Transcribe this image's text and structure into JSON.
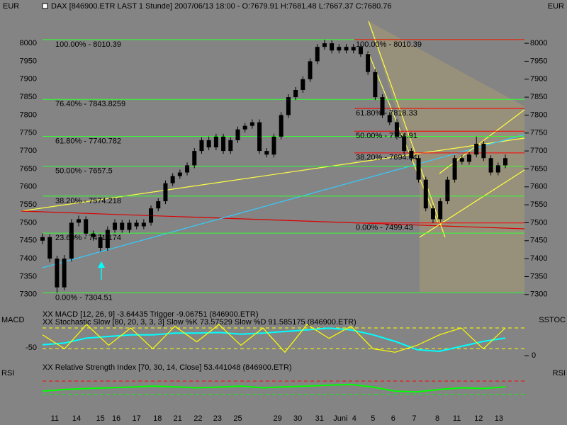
{
  "chart_data": [
    {
      "type": "candlestick",
      "title": "DAX [846900.ETR LAST 1 Stunde] 2007/06/13 18:00 - O:7679.91 H:7681.48 L:7667.37 C:7680.76",
      "ylabel": "EUR",
      "y2label": "EUR",
      "color": "#000000",
      "ylim": [
        7272,
        8091
      ],
      "yticks": [
        7300,
        7350,
        7400,
        7450,
        7500,
        7550,
        7600,
        7650,
        7700,
        7750,
        7800,
        7850,
        7900,
        7950,
        8000
      ],
      "xlim": [
        0,
        64
      ],
      "xticks": [
        {
          "value": 1.7,
          "label": "11"
        },
        {
          "value": 4.7,
          "label": "14"
        },
        {
          "value": 8,
          "label": "15"
        },
        {
          "value": 10.2,
          "label": "16"
        },
        {
          "value": 13,
          "label": "17"
        },
        {
          "value": 15.9,
          "label": "18"
        },
        {
          "value": 18.7,
          "label": "21"
        },
        {
          "value": 21.5,
          "label": "22"
        },
        {
          "value": 24.2,
          "label": "23"
        },
        {
          "value": 27,
          "label": "25"
        },
        {
          "value": 32.5,
          "label": "29"
        },
        {
          "value": 35.3,
          "label": "30"
        },
        {
          "value": 38.3,
          "label": "31"
        },
        {
          "value": 41.2,
          "label": "Juni"
        },
        {
          "value": 43.1,
          "label": "4"
        },
        {
          "value": 45.7,
          "label": "5"
        },
        {
          "value": 48.5,
          "label": "6"
        },
        {
          "value": 51.4,
          "label": "7"
        },
        {
          "value": 54.6,
          "label": "8"
        },
        {
          "value": 57.3,
          "label": "11"
        },
        {
          "value": 60.3,
          "label": "12"
        },
        {
          "value": 63.1,
          "label": "13"
        }
      ],
      "ohlc": [
        [
          7450,
          7470,
          7440,
          7460
        ],
        [
          7460,
          7468,
          7390,
          7400
        ],
        [
          7400,
          7408,
          7305,
          7320
        ],
        [
          7320,
          7410,
          7312,
          7400
        ],
        [
          7400,
          7510,
          7392,
          7500
        ],
        [
          7500,
          7520,
          7490,
          7510
        ],
        [
          7510,
          7518,
          7462,
          7470
        ],
        [
          7470,
          7478,
          7450,
          7460
        ],
        [
          7460,
          7468,
          7420,
          7430
        ],
        [
          7430,
          7490,
          7422,
          7480
        ],
        [
          7480,
          7510,
          7472,
          7500
        ],
        [
          7500,
          7508,
          7472,
          7480
        ],
        [
          7480,
          7508,
          7472,
          7500
        ],
        [
          7500,
          7508,
          7482,
          7490
        ],
        [
          7490,
          7510,
          7482,
          7500
        ],
        [
          7500,
          7548,
          7492,
          7540
        ],
        [
          7540,
          7568,
          7532,
          7560
        ],
        [
          7560,
          7618,
          7552,
          7610
        ],
        [
          7610,
          7638,
          7602,
          7630
        ],
        [
          7630,
          7648,
          7622,
          7640
        ],
        [
          7640,
          7668,
          7632,
          7660
        ],
        [
          7660,
          7708,
          7652,
          7700
        ],
        [
          7700,
          7738,
          7692,
          7730
        ],
        [
          7730,
          7740,
          7702,
          7710
        ],
        [
          7710,
          7748,
          7702,
          7740
        ],
        [
          7740,
          7748,
          7692,
          7700
        ],
        [
          7700,
          7738,
          7692,
          7730
        ],
        [
          7730,
          7768,
          7722,
          7760
        ],
        [
          7760,
          7778,
          7752,
          7770
        ],
        [
          7770,
          7788,
          7762,
          7780
        ],
        [
          7780,
          7788,
          7692,
          7700
        ],
        [
          7700,
          7708,
          7682,
          7690
        ],
        [
          7690,
          7748,
          7682,
          7740
        ],
        [
          7740,
          7808,
          7732,
          7800
        ],
        [
          7800,
          7858,
          7792,
          7850
        ],
        [
          7850,
          7878,
          7842,
          7870
        ],
        [
          7870,
          7908,
          7862,
          7900
        ],
        [
          7900,
          7958,
          7892,
          7950
        ],
        [
          7950,
          7998,
          7942,
          7990
        ],
        [
          7990,
          8010,
          7982,
          8000
        ],
        [
          8000,
          8008,
          7972,
          7980
        ],
        [
          7980,
          7998,
          7972,
          7990
        ],
        [
          7990,
          7998,
          7972,
          7980
        ],
        [
          7980,
          7998,
          7972,
          7990
        ],
        [
          7990,
          7998,
          7962,
          7970
        ],
        [
          7970,
          7978,
          7912,
          7920
        ],
        [
          7920,
          7928,
          7842,
          7850
        ],
        [
          7850,
          7858,
          7792,
          7800
        ],
        [
          7800,
          7808,
          7772,
          7780
        ],
        [
          7780,
          7788,
          7732,
          7740
        ],
        [
          7740,
          7748,
          7692,
          7700
        ],
        [
          7700,
          7708,
          7672,
          7680
        ],
        [
          7680,
          7688,
          7612,
          7620
        ],
        [
          7620,
          7628,
          7532,
          7540
        ],
        [
          7540,
          7548,
          7499,
          7510
        ],
        [
          7510,
          7568,
          7502,
          7560
        ],
        [
          7560,
          7628,
          7552,
          7620
        ],
        [
          7620,
          7688,
          7612,
          7680
        ],
        [
          7680,
          7688,
          7662,
          7670
        ],
        [
          7670,
          7698,
          7662,
          7690
        ],
        [
          7690,
          7740,
          7682,
          7720
        ],
        [
          7720,
          7728,
          7672,
          7680
        ],
        [
          7680,
          7688,
          7632,
          7640
        ],
        [
          7640,
          7668,
          7632,
          7660
        ],
        [
          7660,
          7690,
          7652,
          7680
        ]
      ],
      "fib_left": [
        {
          "value": 8010.39,
          "label": "100.00% - 8010.39"
        },
        {
          "value": 7843.8259,
          "label": "76.40% - 7843.8259"
        },
        {
          "value": 7740.782,
          "label": "61.80% - 7740.782"
        },
        {
          "value": 7657.5,
          "label": "50.00% - 7657.5"
        },
        {
          "value": 7574.218,
          "label": "38.20% - 7574.218"
        },
        {
          "value": 7471.174,
          "label": "23.60% - 7471.174"
        },
        {
          "value": 7304.51,
          "label": "0.00% - 7304.51"
        }
      ],
      "fib_left_color": "#33ff33",
      "fib_right": [
        {
          "value": 8010.39,
          "label": "100.00% - 8010.39"
        },
        {
          "value": 7818.33,
          "label": "61.80% - 7818.33"
        },
        {
          "value": 7754.91,
          "label": "50.00% - 7754.91"
        },
        {
          "value": 7694.64,
          "label": "38.20% - 7694.64"
        },
        {
          "value": 7499.43,
          "label": "0.00% - 7499.43"
        }
      ],
      "fib_right_color": "#ff0000"
    },
    {
      "type": "line",
      "ylabel": "MACD",
      "y2label": "SSTOC",
      "ylim": [
        -90,
        60
      ],
      "yticks": [
        -50
      ],
      "y2lim": [
        -16,
        127
      ],
      "y2ticks": [
        0
      ],
      "y2levels": [
        80,
        20
      ],
      "level_color": "#ffff00",
      "series": [
        {
          "name": "XX MACD [12, 26, 9] -3.64435 Trigger -9.06751 (846900.ETR)",
          "color": "#00ffff",
          "values": [
            -40,
            -35,
            -20,
            -15,
            -10,
            -10,
            -5,
            -5,
            -3,
            -8,
            -5,
            0,
            5,
            10,
            5,
            -10,
            -30,
            -55,
            -60,
            -45,
            -30,
            -20
          ]
        },
        {
          "name": "XX Stochastic Slow [80, 20, 3, 3, 3] Slow %K 73.57529 Slow %D 91.585175 (846900.ETR)",
          "color": "#ffff00",
          "axis": "y2",
          "values": [
            60,
            20,
            90,
            30,
            80,
            20,
            85,
            40,
            90,
            30,
            80,
            10,
            90,
            50,
            85,
            20,
            10,
            30,
            60,
            80,
            20,
            80
          ]
        }
      ]
    },
    {
      "type": "line",
      "ylabel": "RSI",
      "y2label": "RSI",
      "ylim": [
        -18,
        118
      ],
      "levels": [
        {
          "value": 70,
          "color": "#ff0000"
        },
        {
          "value": 30,
          "color": "#00ff00"
        }
      ],
      "series": [
        {
          "name": "XX Relative Strength Index [70, 30, 14, Close] 53.441048 (846900.ETR)",
          "color": "#00ff00",
          "values": [
            40,
            45,
            48,
            50,
            52,
            55,
            53,
            50,
            52,
            55,
            50,
            53,
            55,
            58,
            60,
            52,
            40,
            38,
            45,
            50,
            48,
            53
          ]
        }
      ]
    }
  ]
}
